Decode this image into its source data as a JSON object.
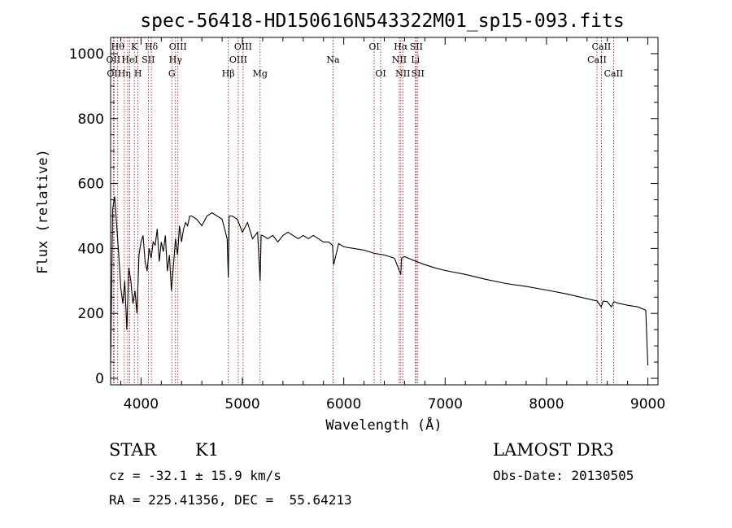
{
  "chart_data": {
    "type": "line",
    "title": "spec-56418-HD150616N543322M01_sp15-093.fits",
    "xlabel": "Wavelength (Å)",
    "ylabel": "Flux (relative)",
    "xlim": [
      3700,
      9100
    ],
    "ylim": [
      -20,
      1050
    ],
    "x_ticks": [
      4000,
      5000,
      6000,
      7000,
      8000,
      9000
    ],
    "y_ticks": [
      0,
      200,
      400,
      600,
      800,
      1000
    ],
    "series": [
      {
        "name": "flux",
        "x": [
          3700,
          3720,
          3740,
          3760,
          3780,
          3800,
          3820,
          3840,
          3860,
          3880,
          3900,
          3920,
          3940,
          3960,
          3980,
          4000,
          4020,
          4040,
          4060,
          4080,
          4100,
          4120,
          4140,
          4160,
          4180,
          4200,
          4220,
          4240,
          4260,
          4280,
          4300,
          4320,
          4340,
          4360,
          4380,
          4400,
          4420,
          4440,
          4460,
          4480,
          4500,
          4550,
          4600,
          4650,
          4700,
          4750,
          4800,
          4850,
          4861,
          4870,
          4900,
          4950,
          5000,
          5050,
          5100,
          5150,
          5175,
          5185,
          5200,
          5250,
          5300,
          5350,
          5400,
          5450,
          5500,
          5550,
          5600,
          5650,
          5700,
          5750,
          5800,
          5850,
          5890,
          5900,
          5950,
          6000,
          6100,
          6200,
          6300,
          6400,
          6500,
          6563,
          6570,
          6600,
          6700,
          6800,
          6900,
          7000,
          7200,
          7400,
          7600,
          7800,
          8000,
          8200,
          8400,
          8500,
          8540,
          8560,
          8600,
          8640,
          8665,
          8700,
          8800,
          8900,
          8980,
          9000
        ],
        "y": [
          40,
          520,
          560,
          470,
          380,
          280,
          230,
          300,
          150,
          340,
          300,
          230,
          270,
          200,
          380,
          420,
          440,
          360,
          330,
          400,
          370,
          420,
          410,
          460,
          360,
          420,
          390,
          440,
          330,
          380,
          270,
          350,
          430,
          380,
          470,
          420,
          460,
          480,
          470,
          500,
          500,
          490,
          470,
          500,
          510,
          500,
          490,
          430,
          310,
          500,
          500,
          490,
          450,
          480,
          430,
          450,
          300,
          440,
          440,
          430,
          440,
          420,
          440,
          450,
          440,
          430,
          440,
          430,
          440,
          430,
          420,
          420,
          410,
          350,
          415,
          405,
          400,
          395,
          385,
          380,
          370,
          320,
          370,
          375,
          362,
          350,
          340,
          332,
          320,
          305,
          292,
          283,
          272,
          260,
          245,
          238,
          220,
          238,
          236,
          220,
          236,
          232,
          225,
          220,
          210,
          40
        ]
      }
    ],
    "lines": [
      {
        "wl": 3727,
        "label": "OII",
        "row": 1
      },
      {
        "wl": 3734,
        "label": "OII",
        "row": 2
      },
      {
        "wl": 3770,
        "label": "Hθ",
        "row": 0
      },
      {
        "wl": 3835,
        "label": "Hη",
        "row": 2
      },
      {
        "wl": 3869,
        "label": "",
        "row": 1
      },
      {
        "wl": 3889,
        "label": "HeI",
        "row": 1
      },
      {
        "wl": 3934,
        "label": "K",
        "row": 0
      },
      {
        "wl": 3970,
        "label": "H",
        "row": 2
      },
      {
        "wl": 4072,
        "label": "SII",
        "row": 1
      },
      {
        "wl": 4102,
        "label": "Hδ",
        "row": 0
      },
      {
        "wl": 4304,
        "label": "G",
        "row": 2
      },
      {
        "wl": 4340,
        "label": "Hγ",
        "row": 1
      },
      {
        "wl": 4364,
        "label": "OIII",
        "row": 0
      },
      {
        "wl": 4861,
        "label": "Hβ",
        "row": 2
      },
      {
        "wl": 4959,
        "label": "OIII",
        "row": 1
      },
      {
        "wl": 5007,
        "label": "OIII",
        "row": 0
      },
      {
        "wl": 5175,
        "label": "Mg",
        "row": 2
      },
      {
        "wl": 5894,
        "label": "Na",
        "row": 1
      },
      {
        "wl": 6300,
        "label": "OI",
        "row": 0
      },
      {
        "wl": 6364,
        "label": "OI",
        "row": 2
      },
      {
        "wl": 6548,
        "label": "NII",
        "row": 1
      },
      {
        "wl": 6563,
        "label": "Hα",
        "row": 0
      },
      {
        "wl": 6583,
        "label": "NII",
        "row": 2
      },
      {
        "wl": 6707,
        "label": "Li",
        "row": 1
      },
      {
        "wl": 6716,
        "label": "SII",
        "row": 0
      },
      {
        "wl": 6731,
        "label": "SII",
        "row": 2
      },
      {
        "wl": 8498,
        "label": "CaII",
        "row": 1
      },
      {
        "wl": 8542,
        "label": "CaII",
        "row": 0
      },
      {
        "wl": 8662,
        "label": "CaII",
        "row": 2
      }
    ]
  },
  "info": {
    "class": "STAR",
    "subclass": "K1",
    "survey": "LAMOST DR3",
    "cz": "cz = -32.1 ± 15.9 km/s",
    "obs_date": "Obs-Date: 20130505",
    "coords": "RA = 225.41356, DEC =  55.64213"
  },
  "colors": {
    "line": "#000000",
    "marker_line": "#aa0000",
    "axes": "#000000"
  }
}
